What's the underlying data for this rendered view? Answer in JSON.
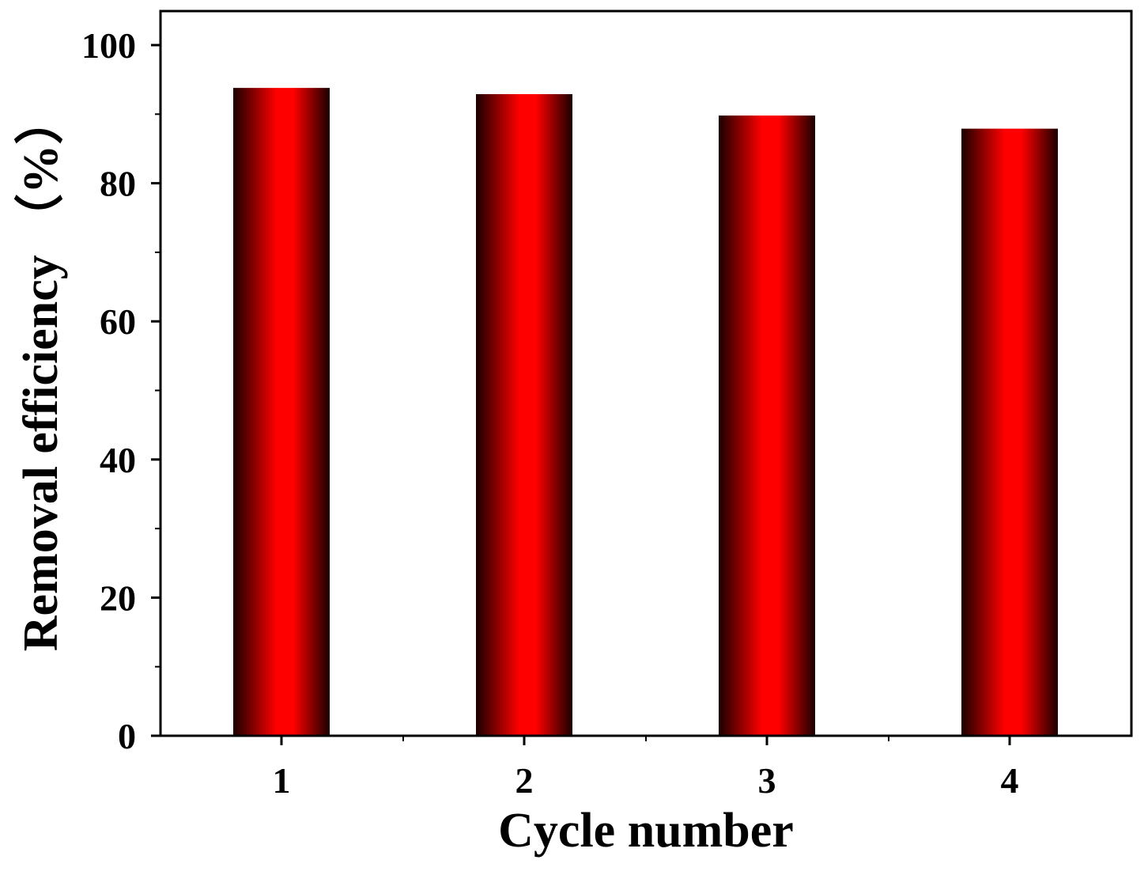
{
  "chart_data": {
    "type": "bar",
    "categories": [
      "1",
      "2",
      "3",
      "4"
    ],
    "values": [
      93.8,
      92.9,
      89.8,
      87.9
    ],
    "xlabel": "Cycle number",
    "ylabel": "Removal efficiency （%）",
    "ylim": [
      0,
      105
    ],
    "yticks": [
      0,
      20,
      40,
      60,
      80,
      100
    ],
    "grid": false,
    "legend": "none",
    "bar_color": "#ff0000",
    "bar_shade_color": "#1a0000"
  }
}
